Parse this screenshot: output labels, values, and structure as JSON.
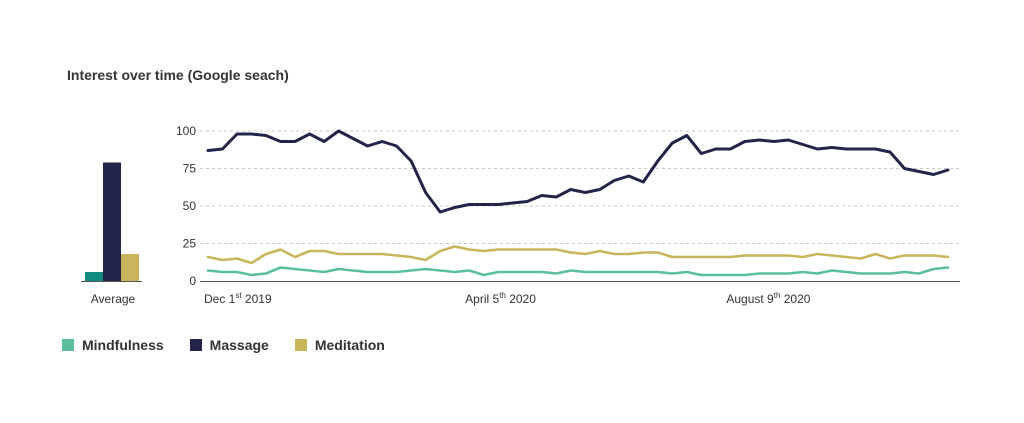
{
  "title": "Interest over time (Google seach)",
  "colors": {
    "Mindfulness": "#5bbf9f",
    "Massage": "#232449",
    "Meditation": "#c9b55c",
    "avg_mindfulness": "#138a80",
    "grid": "#c8c8c8",
    "axis": "#555555"
  },
  "legend": [
    {
      "label": "Mindfulness",
      "color_key": "Mindfulness"
    },
    {
      "label": "Massage",
      "color_key": "Massage"
    },
    {
      "label": "Meditation",
      "color_key": "Meditation"
    }
  ],
  "chart_data": [
    {
      "type": "bar",
      "categories": [
        "Average"
      ],
      "series": [
        {
          "name": "Mindfulness",
          "values": [
            6
          ]
        },
        {
          "name": "Massage",
          "values": [
            79
          ]
        },
        {
          "name": "Meditation",
          "values": [
            18
          ]
        }
      ],
      "ylim": [
        0,
        100
      ]
    },
    {
      "type": "line",
      "title": "Interest over time (Google seach)",
      "ylim": [
        0,
        100
      ],
      "yticks": [
        0,
        25,
        50,
        75,
        100
      ],
      "grid": true,
      "legend_position": "bottom-left",
      "x_tick_labels": [
        {
          "index": 0,
          "base": "Dec 1",
          "sup": "st",
          "tail": " 2019"
        },
        {
          "index": 18,
          "base": "April 5",
          "sup": "th",
          "tail": " 2020"
        },
        {
          "index": 36,
          "base": "August 9",
          "sup": "th",
          "tail": " 2020"
        }
      ],
      "series": [
        {
          "name": "Massage",
          "values": [
            87,
            88,
            98,
            98,
            97,
            93,
            93,
            98,
            93,
            100,
            95,
            90,
            93,
            90,
            80,
            59,
            46,
            49,
            51,
            51,
            51,
            52,
            53,
            57,
            56,
            61,
            59,
            61,
            67,
            70,
            66,
            80,
            92,
            97,
            85,
            88,
            88,
            93,
            94,
            93,
            94,
            91,
            88,
            89,
            88,
            88,
            88,
            86,
            75,
            73,
            71,
            74
          ]
        },
        {
          "name": "Meditation",
          "values": [
            16,
            14,
            15,
            12,
            18,
            21,
            16,
            20,
            20,
            18,
            18,
            18,
            18,
            17,
            16,
            14,
            20,
            23,
            21,
            20,
            21,
            21,
            21,
            21,
            21,
            19,
            18,
            20,
            18,
            18,
            19,
            19,
            16,
            16,
            16,
            16,
            16,
            17,
            17,
            17,
            17,
            16,
            18,
            17,
            16,
            15,
            18,
            15,
            17,
            17,
            17,
            16
          ]
        },
        {
          "name": "Mindfulness",
          "values": [
            7,
            6,
            6,
            4,
            5,
            9,
            8,
            7,
            6,
            8,
            7,
            6,
            6,
            6,
            7,
            8,
            7,
            6,
            7,
            4,
            6,
            6,
            6,
            6,
            5,
            7,
            6,
            6,
            6,
            6,
            6,
            6,
            5,
            6,
            4,
            4,
            4,
            4,
            5,
            5,
            5,
            6,
            5,
            7,
            6,
            5,
            5,
            5,
            6,
            5,
            8,
            9
          ]
        }
      ]
    }
  ]
}
